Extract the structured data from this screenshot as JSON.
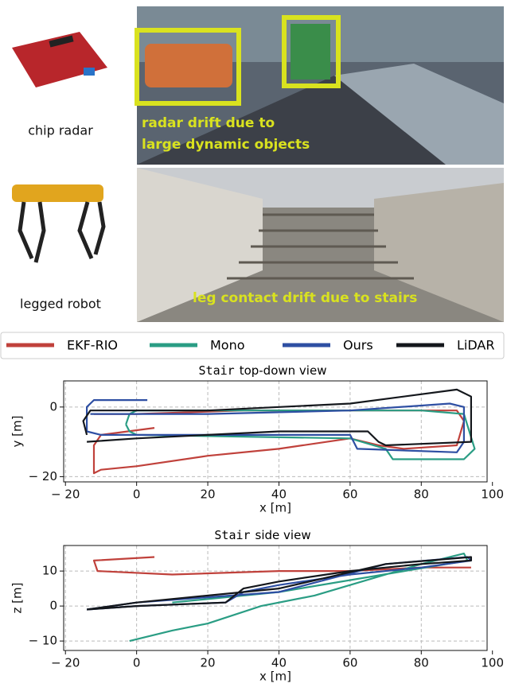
{
  "figure": {
    "sensors": [
      "chip radar",
      "legged robot"
    ],
    "captions": [
      [
        "radar drift due to",
        "large dynamic objects"
      ],
      [
        "leg contact drift due to stairs"
      ]
    ]
  },
  "chart_data": [
    {
      "type": "line",
      "title_code": "Stair",
      "title": "top-down view",
      "x_label": "x [m]",
      "y_label": "y [m]",
      "xlim": [
        -20.5,
        98.5
      ],
      "ylim": [
        -21.5,
        7.5
      ],
      "xticks": [
        {
          "value": -20,
          "label": "− 20"
        },
        0,
        20,
        40,
        60,
        80,
        100
      ],
      "yticks": [
        {
          "value": -20,
          "label": "− 20"
        },
        0
      ],
      "grid": true,
      "series": [
        {
          "name": "EKF-RIO",
          "color": "#c0413b",
          "x": [
            5,
            -10,
            -12,
            -12,
            -10,
            0,
            20,
            40,
            60,
            68,
            75,
            90,
            92,
            90,
            60,
            30,
            0,
            -12
          ],
          "values": [
            -6,
            -8,
            -11,
            -19,
            -18,
            -17,
            -14,
            -12,
            -9,
            -11,
            -12,
            -11,
            -4,
            -1,
            -1,
            -1,
            -2,
            -2
          ]
        },
        {
          "name": "Mono",
          "color": "#2a9d84",
          "x": [
            -3,
            -2,
            0,
            50,
            80,
            92,
            95,
            92,
            72,
            70,
            60,
            0,
            -2,
            -3
          ],
          "values": [
            -5,
            -2,
            -1,
            -1,
            -1,
            -2,
            -12,
            -15,
            -15,
            -12,
            -9,
            -8,
            -7,
            -5
          ]
        },
        {
          "name": "Ours",
          "color": "#2e4fa3",
          "x": [
            3,
            -12,
            -14,
            -14,
            -10,
            60,
            62,
            90,
            92,
            92,
            88,
            60,
            20,
            -13
          ],
          "values": [
            2,
            2,
            0,
            -7,
            -8,
            -8,
            -12,
            -13,
            -10,
            0,
            1,
            -1,
            -2,
            -2
          ]
        },
        {
          "name": "LiDAR",
          "color": "#14171c",
          "x": [
            -14,
            -15,
            -13,
            0,
            20,
            60,
            90,
            94,
            94,
            70,
            68,
            65,
            40,
            20,
            0,
            -14
          ],
          "values": [
            -8,
            -4,
            -1,
            -1,
            -1,
            1,
            5,
            3,
            -10,
            -11,
            -10,
            -7,
            -7,
            -8,
            -9,
            -10
          ]
        }
      ]
    },
    {
      "type": "line",
      "title_code": "Stair",
      "title": "side view",
      "x_label": "x [m]",
      "y_label": "z [m]",
      "xlim": [
        -20.5,
        98.5
      ],
      "ylim": [
        -12.7,
        17.3
      ],
      "xticks": [
        {
          "value": -20,
          "label": "− 20"
        },
        0,
        20,
        40,
        60,
        80,
        100
      ],
      "yticks": [
        {
          "value": -10,
          "label": "− 10"
        },
        0,
        10
      ],
      "grid": true,
      "series": [
        {
          "color": "#c0413b",
          "x": [
            5,
            -12,
            -11,
            10,
            40,
            60,
            80,
            94
          ],
          "values": [
            14,
            13,
            10,
            9,
            10,
            10,
            11,
            11
          ]
        },
        {
          "color": "#2a9d84",
          "x": [
            -2,
            10,
            20,
            35,
            50,
            60,
            70,
            80,
            92,
            93,
            40,
            10
          ],
          "values": [
            -10,
            -7,
            -5,
            0,
            3,
            6,
            9,
            12,
            15,
            13,
            4,
            1
          ]
        },
        {
          "color": "#2e4fa3",
          "x": [
            -14,
            0,
            25,
            30,
            40,
            60,
            80,
            94,
            93,
            70,
            40,
            0,
            -14
          ],
          "values": [
            -1,
            0,
            1,
            4,
            6,
            9,
            11,
            13,
            14,
            12,
            4,
            1,
            -1
          ]
        },
        {
          "color": "#14171c",
          "x": [
            -14,
            0,
            25,
            30,
            40,
            60,
            80,
            94,
            94,
            70,
            40,
            0,
            -14
          ],
          "values": [
            -1,
            0,
            1,
            5,
            7,
            10,
            12,
            13,
            14,
            12,
            5,
            1,
            -1
          ]
        }
      ]
    }
  ]
}
